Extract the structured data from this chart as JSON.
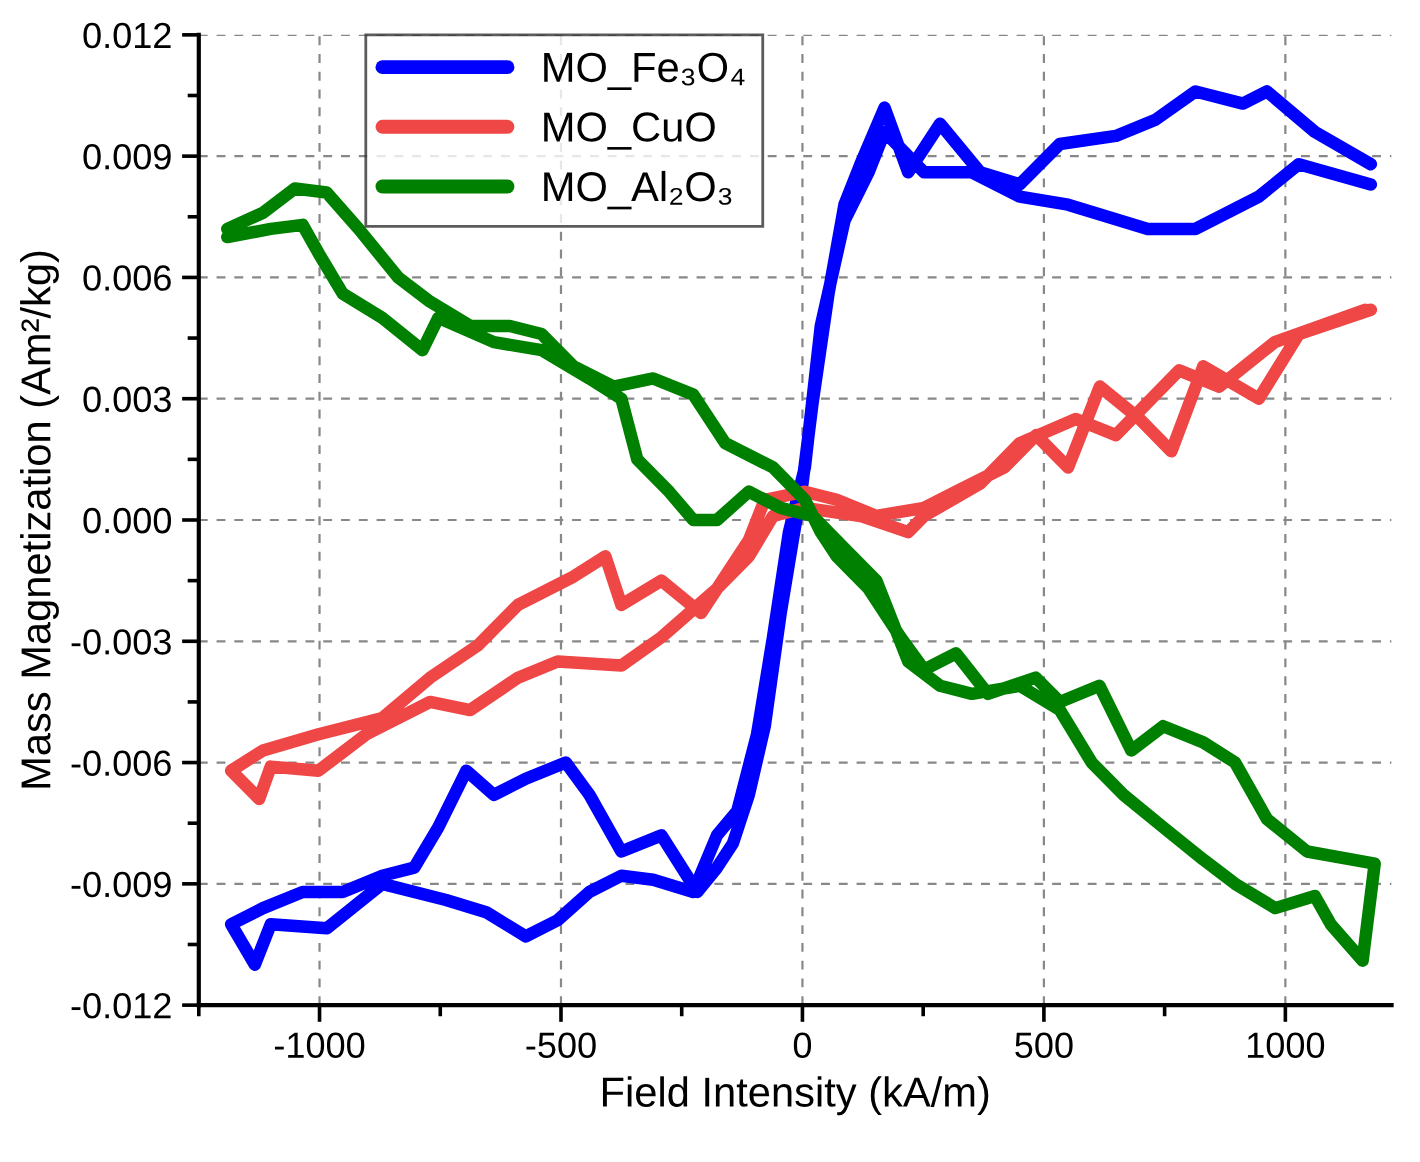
{
  "chart_data": {
    "type": "line",
    "xlabel": "Field Intensity (kA/m)",
    "ylabel": "Mass Magnetization (Am²/kg)",
    "xlim": [
      -1250,
      1220
    ],
    "ylim": [
      -0.012,
      0.012
    ],
    "xticks": [
      -1000,
      -500,
      0,
      500,
      1000
    ],
    "yticks": [
      -0.012,
      -0.009,
      -0.006,
      -0.003,
      {
        "value": 0,
        "label": "0.000"
      },
      0.003,
      0.006,
      0.009,
      0.012
    ],
    "grid": true,
    "legend": "top left",
    "marker": "none",
    "line_style": "solid",
    "series": [
      {
        "name": "MO_Fe₃O₄",
        "color": "#0000ff",
        "x": [
          1177,
          1061,
          962,
          912,
          814,
          731,
          649,
          533,
          450,
          368,
          285,
          219,
          170,
          120,
          87,
          54,
          21,
          0,
          -20,
          -45,
          -78,
          -111,
          -144,
          -177,
          -218,
          -292,
          -375,
          -441,
          -490,
          -573,
          -639,
          -696,
          -754,
          -804,
          -870,
          -952,
          -1035,
          -1117,
          -1183,
          -1134,
          -1101,
          -985,
          -870,
          -738,
          -655,
          -573,
          -507,
          -441,
          -375,
          -309,
          -226,
          -177,
          -135,
          -94,
          -61,
          -28,
          5,
          38,
          87,
          137,
          170,
          252,
          351,
          450,
          550,
          715,
          814,
          945,
          1028,
          1177
        ],
        "values": [
          0.0088,
          0.0096,
          0.0106,
          0.0103,
          0.0106,
          0.0099,
          0.0095,
          0.0093,
          0.0083,
          0.0086,
          0.0098,
          0.0086,
          0.0102,
          0.0088,
          0.0078,
          0.0056,
          0.0029,
          0.0009,
          -0.0005,
          -0.0023,
          -0.0051,
          -0.0068,
          -0.008,
          -0.0086,
          -0.0092,
          -0.0078,
          -0.0082,
          -0.0068,
          -0.006,
          -0.0064,
          -0.0068,
          -0.0062,
          -0.0076,
          -0.0086,
          -0.0088,
          -0.0092,
          -0.0092,
          -0.0096,
          -0.01,
          -0.011,
          -0.01,
          -0.0101,
          -0.009,
          -0.0094,
          -0.0097,
          -0.0103,
          -0.0099,
          -0.0092,
          -0.0088,
          -0.0089,
          -0.0092,
          -0.0078,
          -0.0072,
          -0.0053,
          -0.0029,
          -0.0003,
          0.0013,
          0.0048,
          0.0074,
          0.0086,
          0.0096,
          0.0086,
          0.0086,
          0.008,
          0.0078,
          0.0072,
          0.0072,
          0.008,
          0.0088,
          0.0083
        ]
      },
      {
        "name": "MO_CuO",
        "color": "#ef4646",
        "x": [
          1177,
          1028,
          945,
          830,
          764,
          698,
          616,
          550,
          484,
          418,
          318,
          252,
          153,
          71,
          5,
          -78,
          -111,
          -210,
          -292,
          -375,
          -408,
          -474,
          -589,
          -672,
          -771,
          -870,
          -1002,
          -1117,
          -1183,
          -1125,
          -1101,
          -1002,
          -903,
          -771,
          -688,
          -589,
          -507,
          -375,
          -292,
          -177,
          -111,
          -61,
          5,
          120,
          219,
          252,
          368,
          450,
          566,
          649,
          780,
          863,
          978,
          1165
        ],
        "values": [
          0.0052,
          0.0046,
          0.003,
          0.0038,
          0.0017,
          0.0025,
          0.0033,
          0.0013,
          0.0021,
          0.0013,
          0.0007,
          0.0003,
          0.0001,
          0.0005,
          0.0007,
          0.0005,
          -0.0005,
          -0.0023,
          -0.0015,
          -0.0021,
          -0.0009,
          -0.0014,
          -0.0021,
          -0.0031,
          -0.0039,
          -0.0049,
          -0.0053,
          -0.0057,
          -0.0062,
          -0.0069,
          -0.0061,
          -0.0062,
          -0.0053,
          -0.0045,
          -0.0047,
          -0.0039,
          -0.0035,
          -0.0036,
          -0.0029,
          -0.0017,
          -0.0009,
          0.0001,
          0.0003,
          0.0001,
          -0.0003,
          0.0001,
          0.0009,
          0.0019,
          0.0025,
          0.0021,
          0.0037,
          0.0033,
          0.0044,
          0.0052
        ]
      },
      {
        "name": "MO_Al₂O₃",
        "color": "#008000",
        "x": [
          -1191,
          -1117,
          -1051,
          -985,
          -919,
          -837,
          -771,
          -688,
          -606,
          -540,
          -474,
          -391,
          -309,
          -226,
          -160,
          -61,
          5,
          38,
          71,
          137,
          203,
          252,
          318,
          384,
          483,
          533,
          615,
          681,
          747,
          830,
          896,
          962,
          1045,
          1185,
          1160,
          1094,
          1061,
          979,
          896,
          830,
          747,
          665,
          599,
          533,
          450,
          351,
          285,
          219,
          153,
          87,
          21,
          -45,
          -111,
          -177,
          -226,
          -276,
          -342,
          -375,
          -441,
          -540,
          -639,
          -754,
          -787,
          -870,
          -952,
          -1002,
          -1035,
          -1101,
          -1191
        ],
        "values": [
          0.0072,
          0.0076,
          0.0082,
          0.0081,
          0.0072,
          0.006,
          0.0054,
          0.0048,
          0.0048,
          0.0046,
          0.0038,
          0.0033,
          0.0035,
          0.0031,
          0.0019,
          0.0013,
          0.0005,
          -0.0003,
          -0.0009,
          -0.0017,
          -0.0029,
          -0.0037,
          -0.0033,
          -0.0043,
          -0.0039,
          -0.0045,
          -0.0041,
          -0.0057,
          -0.0051,
          -0.0055,
          -0.006,
          -0.0074,
          -0.0082,
          -0.0085,
          -0.0109,
          -0.01,
          -0.0093,
          -0.0096,
          -0.009,
          -0.0084,
          -0.0076,
          -0.0068,
          -0.006,
          -0.0047,
          -0.0041,
          -0.0043,
          -0.0041,
          -0.0035,
          -0.0015,
          -0.0007,
          0.0001,
          0.0003,
          0.0007,
          0,
          0,
          0.0007,
          0.0015,
          0.003,
          0.0035,
          0.0042,
          0.0044,
          0.005,
          0.0042,
          0.005,
          0.0056,
          0.0066,
          0.0073,
          0.0072,
          0.007
        ]
      }
    ]
  }
}
